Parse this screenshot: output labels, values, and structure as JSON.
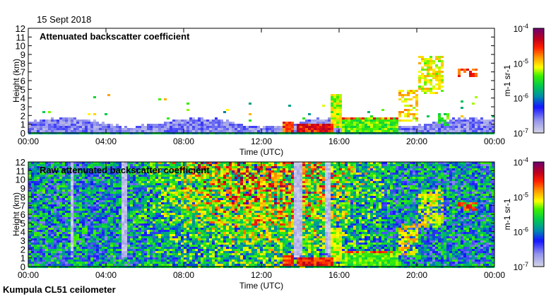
{
  "date_label": "15 Sept 2018",
  "footer_label": "Kumpula CL51 ceilometer",
  "colors": {
    "axis": "#000000",
    "background": "#ffffff"
  },
  "chart_data": [
    {
      "type": "heatmap",
      "title": "Attenuated backscatter coefficient",
      "xlabel": "Time (UTC)",
      "ylabel": "Height (km)",
      "xlim_hours": [
        0,
        24
      ],
      "ylim_km": [
        0,
        12
      ],
      "xticks": [
        "00:00",
        "04:00",
        "08:00",
        "12:00",
        "16:00",
        "20:00",
        "00:00"
      ],
      "yticks": [
        "0",
        "1",
        "2",
        "3",
        "4",
        "5",
        "6",
        "7",
        "8",
        "9",
        "10",
        "11",
        "12"
      ],
      "colorbar": {
        "label": "m-1 sr-1",
        "ticks": [
          "10-7",
          "10-6",
          "10-5",
          "10-4"
        ],
        "log10_range": [
          -7,
          -4
        ]
      },
      "noise": false,
      "features": [
        {
          "t0": 0,
          "t1": 24,
          "h0": 0,
          "h1": 1.5,
          "log10": -6.6
        },
        {
          "t0": 0,
          "t1": 24,
          "h0": 0,
          "h1": 0.25,
          "log10": -5.8
        },
        {
          "t0": 13.0,
          "t1": 13.6,
          "h0": 0.1,
          "h1": 1.4,
          "log10": -4.6
        },
        {
          "t0": 13.8,
          "t1": 15.6,
          "h0": 0.1,
          "h1": 1.1,
          "log10": -4.5
        },
        {
          "t0": 15.5,
          "t1": 16.1,
          "h0": 0.8,
          "h1": 4.6,
          "log10": -5.2
        },
        {
          "t0": 16.1,
          "t1": 19.0,
          "h0": 0.3,
          "h1": 2.0,
          "log10": -5.4
        },
        {
          "t0": 16.1,
          "t1": 19.0,
          "h0": 1.6,
          "h1": 2.0,
          "log10": -4.6
        },
        {
          "t0": 19.0,
          "t1": 20.0,
          "h0": 1.5,
          "h1": 5.0,
          "log10": -5.0
        },
        {
          "t0": 20.0,
          "t1": 21.3,
          "h0": 4.5,
          "h1": 9.0,
          "log10": -5.1
        },
        {
          "t0": 22.0,
          "t1": 23.0,
          "h0": 6.5,
          "h1": 7.6,
          "log10": -4.6
        },
        {
          "t0": 21.0,
          "t1": 21.6,
          "h0": 1.0,
          "h1": 2.5,
          "log10": -5.4
        }
      ]
    },
    {
      "type": "heatmap",
      "title": "Raw attenuated backscatter coefficient",
      "xlabel": "Time (UTC)",
      "ylabel": "Height (km)",
      "xlim_hours": [
        0,
        24
      ],
      "ylim_km": [
        0,
        12
      ],
      "xticks": [
        "00:00",
        "04:00",
        "08:00",
        "12:00",
        "16:00",
        "20:00",
        "00:00"
      ],
      "yticks": [
        "0",
        "1",
        "2",
        "3",
        "4",
        "5",
        "6",
        "7",
        "8",
        "9",
        "10",
        "11",
        "12"
      ],
      "colorbar": {
        "label": "m-1 sr-1",
        "ticks": [
          "10-7",
          "10-6",
          "10-5",
          "10-4"
        ],
        "log10_range": [
          -7,
          -4
        ]
      },
      "noise": true,
      "grey_stripes_hours": [
        [
          2.1,
          2.3
        ],
        [
          4.7,
          5.0
        ],
        [
          13.6,
          14.0
        ],
        [
          15.2,
          15.5
        ]
      ],
      "features": [
        {
          "t0": 0,
          "t1": 24,
          "h0": 0,
          "h1": 1.5,
          "log10": -6.6
        },
        {
          "t0": 0,
          "t1": 24,
          "h0": 0,
          "h1": 0.25,
          "log10": -5.8
        },
        {
          "t0": 13.0,
          "t1": 13.6,
          "h0": 0.1,
          "h1": 1.4,
          "log10": -4.6
        },
        {
          "t0": 13.8,
          "t1": 15.6,
          "h0": 0.1,
          "h1": 1.1,
          "log10": -4.5
        },
        {
          "t0": 15.5,
          "t1": 16.1,
          "h0": 0.8,
          "h1": 4.6,
          "log10": -5.2
        },
        {
          "t0": 16.1,
          "t1": 19.0,
          "h0": 0.3,
          "h1": 2.0,
          "log10": -5.4
        },
        {
          "t0": 16.1,
          "t1": 19.0,
          "h0": 1.6,
          "h1": 2.0,
          "log10": -4.6
        },
        {
          "t0": 19.0,
          "t1": 20.0,
          "h0": 1.5,
          "h1": 5.0,
          "log10": -5.0
        },
        {
          "t0": 20.0,
          "t1": 21.3,
          "h0": 4.5,
          "h1": 9.0,
          "log10": -5.1
        },
        {
          "t0": 22.0,
          "t1": 23.0,
          "h0": 6.5,
          "h1": 7.6,
          "log10": -4.6
        }
      ]
    }
  ]
}
